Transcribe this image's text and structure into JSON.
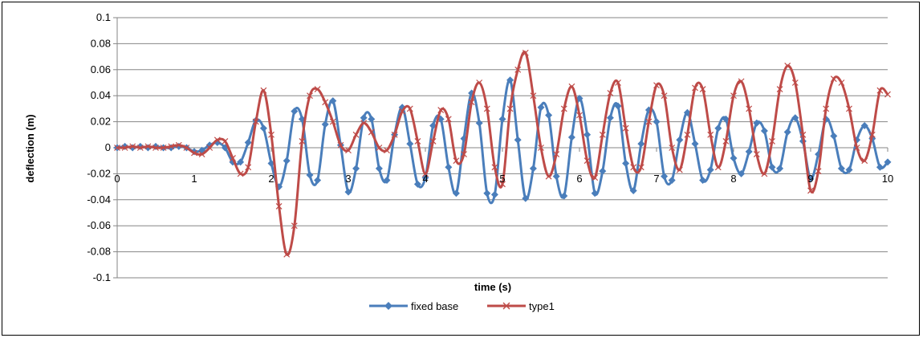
{
  "chart_data": {
    "type": "line",
    "xlabel": "time (s)",
    "ylabel": "deflection (m)",
    "xlim": [
      0,
      10
    ],
    "ylim": [
      -0.1,
      0.1
    ],
    "x_ticks": [
      "0",
      "1",
      "2",
      "3",
      "4",
      "5",
      "6",
      "7",
      "8",
      "9",
      "10"
    ],
    "y_ticks": [
      "-0.1",
      "-0.08",
      "-0.06",
      "-0.04",
      "-0.02",
      "0",
      "0.02",
      "0.04",
      "0.06",
      "0.08",
      "0.1"
    ],
    "y_tick_values": [
      -0.1,
      -0.08,
      -0.06,
      -0.04,
      -0.02,
      0,
      0.02,
      0.04,
      0.06,
      0.08,
      0.1
    ],
    "grid": "horizontal",
    "legend_position": "bottom-center",
    "series": [
      {
        "name": "fixed base",
        "color": "#4A7EBB",
        "marker": "diamond",
        "x": [
          0,
          0.1,
          0.2,
          0.3,
          0.4,
          0.5,
          0.6,
          0.7,
          0.8,
          0.9,
          1.0,
          1.1,
          1.2,
          1.3,
          1.4,
          1.5,
          1.6,
          1.7,
          1.8,
          1.9,
          2.0,
          2.1,
          2.2,
          2.3,
          2.4,
          2.5,
          2.6,
          2.7,
          2.8,
          2.9,
          3.0,
          3.1,
          3.2,
          3.3,
          3.4,
          3.5,
          3.6,
          3.7,
          3.8,
          3.9,
          4.0,
          4.1,
          4.2,
          4.3,
          4.4,
          4.5,
          4.6,
          4.7,
          4.8,
          4.9,
          5.0,
          5.1,
          5.2,
          5.3,
          5.4,
          5.5,
          5.6,
          5.7,
          5.8,
          5.9,
          6.0,
          6.1,
          6.2,
          6.3,
          6.4,
          6.5,
          6.6,
          6.7,
          6.8,
          6.9,
          7.0,
          7.1,
          7.2,
          7.3,
          7.4,
          7.5,
          7.6,
          7.7,
          7.8,
          7.9,
          8.0,
          8.1,
          8.2,
          8.3,
          8.4,
          8.5,
          8.6,
          8.7,
          8.8,
          8.9,
          9.0,
          9.1,
          9.2,
          9.3,
          9.4,
          9.5,
          9.6,
          9.7,
          9.8,
          9.9,
          10.0
        ],
        "values": [
          0,
          0.001,
          0,
          0.001,
          0,
          0.001,
          0,
          0,
          0.001,
          0,
          -0.003,
          -0.002,
          0.002,
          0.004,
          0,
          -0.011,
          -0.011,
          0.004,
          0.021,
          0.015,
          -0.012,
          -0.03,
          -0.01,
          0.028,
          0.022,
          -0.021,
          -0.025,
          0.018,
          0.036,
          0.002,
          -0.034,
          -0.016,
          0.023,
          0.022,
          -0.016,
          -0.025,
          0.01,
          0.031,
          0.003,
          -0.028,
          -0.023,
          0.017,
          0.022,
          -0.015,
          -0.035,
          0.007,
          0.042,
          0.019,
          -0.035,
          -0.036,
          0.022,
          0.052,
          0.006,
          -0.039,
          -0.016,
          0.031,
          0.025,
          -0.022,
          -0.037,
          0.008,
          0.038,
          0.01,
          -0.035,
          -0.018,
          0.023,
          0.032,
          -0.012,
          -0.033,
          0.003,
          0.029,
          0.02,
          -0.022,
          -0.025,
          0.006,
          0.027,
          0.003,
          -0.025,
          -0.017,
          0.015,
          0.022,
          -0.008,
          -0.02,
          -0.003,
          0.019,
          0.013,
          -0.015,
          -0.016,
          0.012,
          0.023,
          0.005,
          -0.024,
          -0.005,
          0.022,
          0.009,
          -0.016,
          -0.017,
          0.006,
          0.017,
          0.007,
          -0.015,
          -0.011
        ]
      },
      {
        "name": "type1",
        "color": "#BE4B48",
        "marker": "x",
        "x": [
          0,
          0.1,
          0.2,
          0.3,
          0.4,
          0.5,
          0.6,
          0.7,
          0.8,
          0.9,
          1.0,
          1.1,
          1.2,
          1.3,
          1.4,
          1.5,
          1.6,
          1.7,
          1.8,
          1.9,
          2.0,
          2.1,
          2.2,
          2.3,
          2.4,
          2.5,
          2.6,
          2.7,
          2.8,
          2.9,
          3.0,
          3.1,
          3.2,
          3.3,
          3.4,
          3.5,
          3.6,
          3.7,
          3.8,
          3.9,
          4.0,
          4.1,
          4.2,
          4.3,
          4.4,
          4.5,
          4.6,
          4.7,
          4.8,
          4.9,
          5.0,
          5.1,
          5.2,
          5.3,
          5.4,
          5.5,
          5.6,
          5.7,
          5.8,
          5.9,
          6.0,
          6.1,
          6.2,
          6.3,
          6.4,
          6.5,
          6.6,
          6.7,
          6.8,
          6.9,
          7.0,
          7.1,
          7.2,
          7.3,
          7.4,
          7.5,
          7.6,
          7.7,
          7.8,
          7.9,
          8.0,
          8.1,
          8.2,
          8.3,
          8.4,
          8.5,
          8.6,
          8.7,
          8.8,
          8.9,
          9.0,
          9.1,
          9.2,
          9.3,
          9.4,
          9.5,
          9.6,
          9.7,
          9.8,
          9.9,
          10.0
        ],
        "values": [
          0,
          0,
          0.001,
          0,
          0.001,
          0,
          0,
          0.001,
          0.002,
          0,
          -0.004,
          -0.005,
          0,
          0.006,
          0.005,
          -0.008,
          -0.02,
          -0.015,
          0.02,
          0.044,
          0.01,
          -0.045,
          -0.082,
          -0.06,
          0.005,
          0.04,
          0.045,
          0.035,
          0.02,
          0.002,
          -0.002,
          0.01,
          0.019,
          0.012,
          0,
          -0.002,
          0.01,
          0.028,
          0.03,
          0.005,
          -0.02,
          0.005,
          0.029,
          0.022,
          -0.01,
          -0.005,
          0.035,
          0.05,
          0.03,
          -0.015,
          -0.028,
          0.03,
          0.06,
          0.073,
          0.04,
          0,
          -0.022,
          -0.005,
          0.03,
          0.047,
          0.025,
          -0.01,
          -0.023,
          0.01,
          0.042,
          0.05,
          0.015,
          -0.015,
          -0.015,
          0.02,
          0.048,
          0.04,
          0,
          -0.017,
          0.01,
          0.046,
          0.045,
          0.01,
          -0.015,
          0.005,
          0.04,
          0.051,
          0.03,
          -0.005,
          -0.02,
          0.005,
          0.045,
          0.063,
          0.05,
          0.01,
          -0.033,
          -0.018,
          0.03,
          0.053,
          0.05,
          0.03,
          0,
          -0.01,
          0.01,
          0.044,
          0.041
        ]
      }
    ]
  }
}
